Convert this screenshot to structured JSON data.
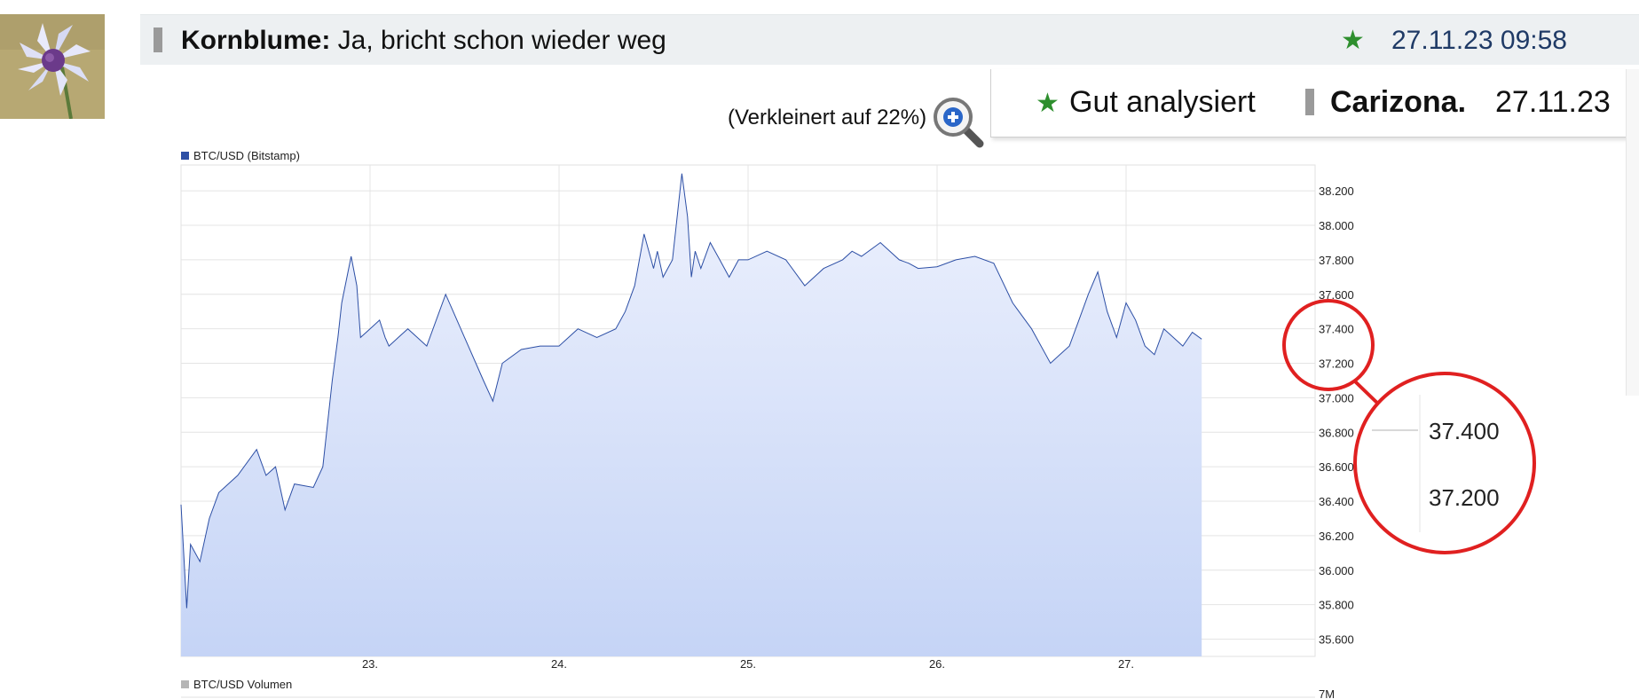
{
  "post": {
    "author": "Kornblume:",
    "text": "Ja, bricht schon wieder weg",
    "date": "27.11.23 09:58",
    "rating_icon": "green-star-icon",
    "rank_icon": "rank-bar-icon"
  },
  "reply": {
    "label": "Gut analysiert",
    "user": "Carizona.",
    "date": "27.11.23"
  },
  "image_note": {
    "text": "(Verkleinert auf 22%)",
    "zoom_icon": "magnifier-plus-icon"
  },
  "colors": {
    "header_bg": "#edf0f2",
    "date_color": "#1f3a66",
    "star": "#2e8f2e",
    "series_line": "#2d4fa5",
    "fill_top": "#edf1fd",
    "fill_bottom": "#c5d4f6",
    "annotation": "#e02020"
  },
  "chart_data": {
    "type": "area",
    "legend": "BTC/USD (Bitstamp)",
    "volume_legend": "BTC/USD Volumen",
    "volume_tick": "7M",
    "x_tick_labels": [
      "23.",
      "24.",
      "25.",
      "26.",
      "27."
    ],
    "y_tick_labels": [
      "38.200",
      "38.000",
      "37.800",
      "37.600",
      "37.400",
      "37.200",
      "37.000",
      "36.800",
      "36.600",
      "36.400",
      "36.200",
      "36.000",
      "35.800",
      "35.600"
    ],
    "ylim": [
      35500,
      38350
    ],
    "xlim": [
      22.0,
      28.0
    ],
    "grid": true,
    "legend_position": "top-left",
    "magnified_labels": [
      "37.400",
      "37.200"
    ],
    "series": [
      {
        "name": "BTC/USD (Bitstamp)",
        "x": [
          22.0,
          22.03,
          22.05,
          22.1,
          22.15,
          22.2,
          22.3,
          22.4,
          22.45,
          22.5,
          22.55,
          22.6,
          22.7,
          22.75,
          22.8,
          22.83,
          22.85,
          22.9,
          22.93,
          22.95,
          23.0,
          23.05,
          23.08,
          23.1,
          23.15,
          23.2,
          23.3,
          23.4,
          23.5,
          23.6,
          23.65,
          23.7,
          23.8,
          23.9,
          24.0,
          24.1,
          24.2,
          24.3,
          24.35,
          24.4,
          24.45,
          24.5,
          24.52,
          24.55,
          24.6,
          24.65,
          24.68,
          24.7,
          24.72,
          24.75,
          24.8,
          24.85,
          24.9,
          24.95,
          25.0,
          25.1,
          25.2,
          25.3,
          25.4,
          25.5,
          25.55,
          25.6,
          25.7,
          25.8,
          25.85,
          25.9,
          26.0,
          26.1,
          26.2,
          26.3,
          26.4,
          26.5,
          26.6,
          26.65,
          26.7,
          26.75,
          26.8,
          26.85,
          26.9,
          26.95,
          27.0,
          27.05,
          27.1,
          27.15,
          27.2,
          27.3,
          27.35,
          27.4
        ],
        "y": [
          36380,
          35780,
          36150,
          36050,
          36300,
          36450,
          36550,
          36700,
          36550,
          36600,
          36350,
          36500,
          36480,
          36600,
          37100,
          37350,
          37550,
          37820,
          37650,
          37350,
          37400,
          37450,
          37350,
          37300,
          37350,
          37400,
          37300,
          37600,
          37350,
          37100,
          36980,
          37200,
          37280,
          37300,
          37300,
          37400,
          37350,
          37400,
          37500,
          37650,
          37950,
          37750,
          37850,
          37700,
          37800,
          38300,
          38050,
          37700,
          37850,
          37750,
          37900,
          37800,
          37700,
          37800,
          37800,
          37850,
          37800,
          37650,
          37750,
          37800,
          37850,
          37820,
          37900,
          37800,
          37780,
          37750,
          37760,
          37800,
          37820,
          37780,
          37550,
          37400,
          37200,
          37250,
          37300,
          37450,
          37600,
          37730,
          37500,
          37350,
          37550,
          37450,
          37300,
          37250,
          37400,
          37300,
          37380,
          37340
        ]
      }
    ]
  }
}
